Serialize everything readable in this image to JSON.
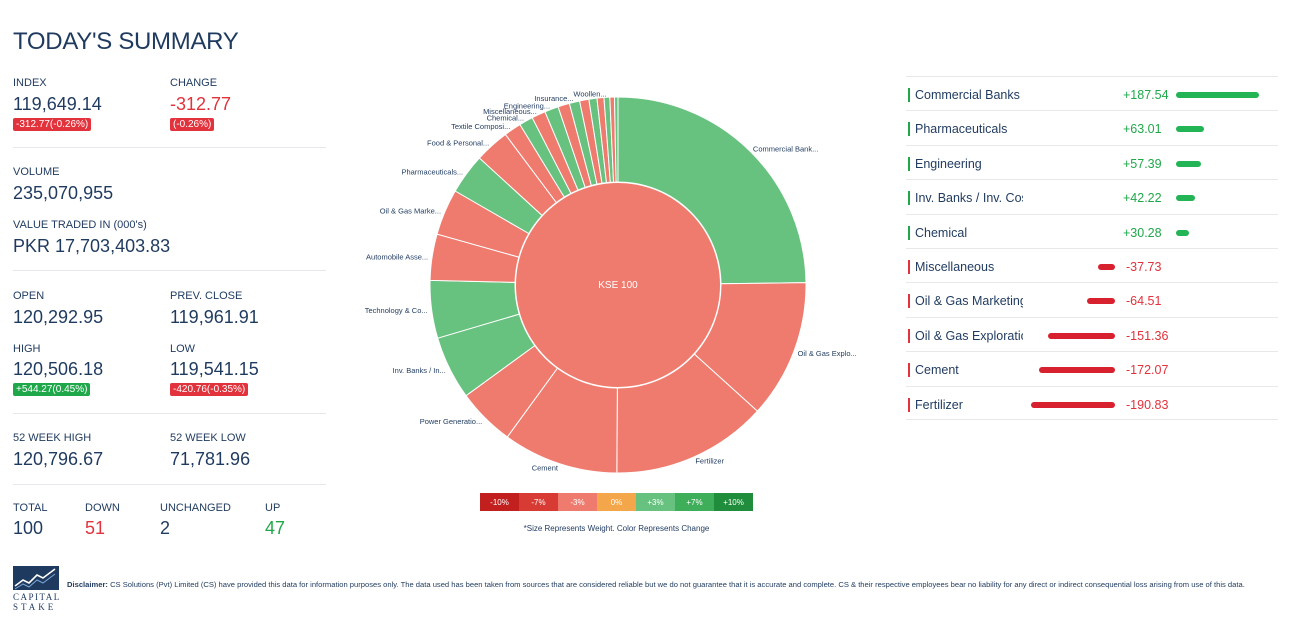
{
  "title": "TODAY'S SUMMARY",
  "index": {
    "label": "INDEX",
    "value": "119,649.14",
    "badge": "-312.77(-0.26%)"
  },
  "change": {
    "label": "CHANGE",
    "value": "-312.77",
    "badge": "(-0.26%)"
  },
  "volume": {
    "label": "VOLUME",
    "value": "235,070,955"
  },
  "value_traded": {
    "label": "VALUE TRADED IN (000's)",
    "value": "PKR 17,703,403.83"
  },
  "open": {
    "label": "OPEN",
    "value": "120,292.95"
  },
  "prev_close": {
    "label": "PREV. CLOSE",
    "value": "119,961.91"
  },
  "high": {
    "label": "HIGH",
    "value": "120,506.18",
    "badge": "+544.27(0.45%)"
  },
  "low": {
    "label": "LOW",
    "value": "119,541.15",
    "badge": "-420.76(-0.35%)"
  },
  "week52_high": {
    "label": "52 WEEK HIGH",
    "value": "120,796.67"
  },
  "week52_low": {
    "label": "52 WEEK LOW",
    "value": "71,781.96"
  },
  "breadth": {
    "total": {
      "label": "TOTAL",
      "value": "100"
    },
    "down": {
      "label": "DOWN",
      "value": "51"
    },
    "unchanged": {
      "label": "UNCHANGED",
      "value": "2"
    },
    "up": {
      "label": "UP",
      "value": "47"
    }
  },
  "sunburst": {
    "center_label": "KSE 100",
    "colors": {
      "pos": "#68c27f",
      "neg": "#ef7b6e",
      "center": "#ef7b6e"
    },
    "segments": [
      {
        "label": "Commercial Bank...",
        "weight": 25.0,
        "sign": "pos"
      },
      {
        "label": "Oil & Gas Explo...",
        "weight": 12.0,
        "sign": "neg"
      },
      {
        "label": "Fertilizer",
        "weight": 13.5,
        "sign": "neg"
      },
      {
        "label": "Cement",
        "weight": 10.0,
        "sign": "neg"
      },
      {
        "label": "Power Generatio...",
        "weight": 5.0,
        "sign": "neg"
      },
      {
        "label": "Inv. Banks / In...",
        "weight": 5.5,
        "sign": "pos"
      },
      {
        "label": "Technology & Co...",
        "weight": 5.0,
        "sign": "pos"
      },
      {
        "label": "Automobile Asse...",
        "weight": 4.0,
        "sign": "neg"
      },
      {
        "label": "Oil & Gas Marke...",
        "weight": 4.0,
        "sign": "neg"
      },
      {
        "label": "Pharmaceuticals...",
        "weight": 3.5,
        "sign": "pos"
      },
      {
        "label": "Food & Personal...",
        "weight": 3.0,
        "sign": "neg"
      },
      {
        "label": "Textile Composi...",
        "weight": 1.5,
        "sign": "neg"
      },
      {
        "label": "Chemical...",
        "weight": 1.2,
        "sign": "pos"
      },
      {
        "label": "Miscellaneous...",
        "weight": 1.2,
        "sign": "neg"
      },
      {
        "label": "Engineering...",
        "weight": 1.2,
        "sign": "pos"
      },
      {
        "label": "",
        "weight": 1.0,
        "sign": "neg"
      },
      {
        "label": "Insurance...",
        "weight": 0.9,
        "sign": "pos"
      },
      {
        "label": "",
        "weight": 0.8,
        "sign": "neg"
      },
      {
        "label": "",
        "weight": 0.7,
        "sign": "pos"
      },
      {
        "label": "",
        "weight": 0.6,
        "sign": "neg"
      },
      {
        "label": "Woollen...",
        "weight": 0.5,
        "sign": "pos"
      },
      {
        "label": "",
        "weight": 0.4,
        "sign": "neg"
      },
      {
        "label": "",
        "weight": 0.3,
        "sign": "pos"
      }
    ]
  },
  "scale": [
    {
      "label": "-10%",
      "color": "#c2201f"
    },
    {
      "label": "-7%",
      "color": "#d83b34"
    },
    {
      "label": "-3%",
      "color": "#ef7b6e"
    },
    {
      "label": "0%",
      "color": "#f4a64a"
    },
    {
      "label": "+3%",
      "color": "#68c27f"
    },
    {
      "label": "+7%",
      "color": "#3fae5b"
    },
    {
      "label": "+10%",
      "color": "#1f8d3b"
    }
  ],
  "scale_note": "*Size Represents Weight. Color Represents Change",
  "sectors": [
    {
      "name": "Commercial Banks",
      "value": "+187.54",
      "magnitude": 187.54,
      "sign": "pos"
    },
    {
      "name": "Pharmaceuticals",
      "value": "+63.01",
      "magnitude": 63.01,
      "sign": "pos"
    },
    {
      "name": "Engineering",
      "value": "+57.39",
      "magnitude": 57.39,
      "sign": "pos"
    },
    {
      "name": "Inv. Banks / Inv. Cos.",
      "value": "+42.22",
      "magnitude": 42.22,
      "sign": "pos"
    },
    {
      "name": "Chemical",
      "value": "+30.28",
      "magnitude": 30.28,
      "sign": "pos"
    },
    {
      "name": "Miscellaneous",
      "value": "-37.73",
      "magnitude": 37.73,
      "sign": "neg"
    },
    {
      "name": "Oil & Gas Marketing",
      "value": "-64.51",
      "magnitude": 64.51,
      "sign": "neg"
    },
    {
      "name": "Oil & Gas Exploration",
      "value": "-151.36",
      "magnitude": 151.36,
      "sign": "neg"
    },
    {
      "name": "Cement",
      "value": "-172.07",
      "magnitude": 172.07,
      "sign": "neg"
    },
    {
      "name": "Fertilizer",
      "value": "-190.83",
      "magnitude": 190.83,
      "sign": "neg"
    }
  ],
  "logo": {
    "line1": "CAPITAL",
    "line2": "STAKE"
  },
  "disclaimer": {
    "label": "Disclaimer:",
    "text": "CS Solutions (Pvt) Limited (CS) have provided this data for information purposes only. The data used has been taken from sources that are considered reliable but we do not guarantee that it is accurate and complete. CS & their respective employees bear no liability for any direct or indirect consequential loss arising from use of this data."
  }
}
